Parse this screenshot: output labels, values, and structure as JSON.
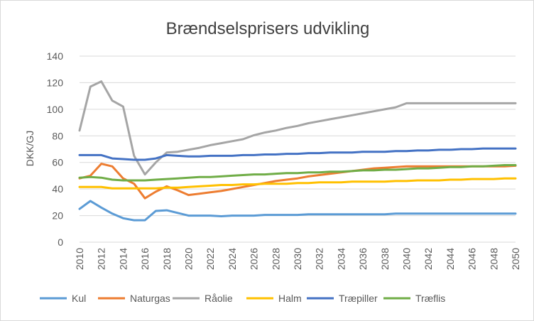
{
  "chart_data": {
    "type": "line",
    "title": "Brændselsprisers udvikling",
    "xlabel": "",
    "ylabel": "DKK/GJ",
    "ylim": [
      0,
      140
    ],
    "yticks": [
      0,
      20,
      40,
      60,
      80,
      100,
      120,
      140
    ],
    "x": [
      2010,
      2011,
      2012,
      2013,
      2014,
      2015,
      2016,
      2017,
      2018,
      2019,
      2020,
      2021,
      2022,
      2023,
      2024,
      2025,
      2026,
      2027,
      2028,
      2029,
      2030,
      2031,
      2032,
      2033,
      2034,
      2035,
      2036,
      2037,
      2038,
      2039,
      2040,
      2041,
      2042,
      2043,
      2044,
      2045,
      2046,
      2047,
      2048,
      2049,
      2050
    ],
    "xtick_labels": [
      "2010",
      "2012",
      "2014",
      "2016",
      "2018",
      "2020",
      "2022",
      "2024",
      "2026",
      "2028",
      "2030",
      "2032",
      "2034",
      "2036",
      "2038",
      "2040",
      "2042",
      "2044",
      "2046",
      "2048",
      "2050"
    ],
    "grid": true,
    "legend": "bottom",
    "series": [
      {
        "name": "Kul",
        "color": "#5b9bd5",
        "values": [
          25,
          31,
          26,
          21.5,
          18,
          16.5,
          16.5,
          23.5,
          24,
          22,
          20,
          20,
          20,
          19.5,
          20,
          20,
          20,
          20.5,
          20.5,
          20.5,
          20.5,
          21,
          21,
          21,
          21,
          21,
          21,
          21,
          21,
          21.5,
          21.5,
          21.5,
          21.5,
          21.5,
          21.5,
          21.5,
          21.5,
          21.5,
          21.5,
          21.5,
          21.5
        ]
      },
      {
        "name": "Naturgas",
        "color": "#ed7d31",
        "values": [
          48,
          50,
          59,
          57,
          48,
          44,
          33,
          38,
          42,
          39,
          35.5,
          36.5,
          37.5,
          38.5,
          40,
          41.5,
          43,
          44.5,
          46,
          47,
          48,
          49.5,
          50.5,
          51.5,
          52.5,
          53.5,
          54.5,
          55.5,
          56,
          56.5,
          57,
          57,
          57,
          57,
          57,
          57,
          57,
          57,
          57,
          57,
          57.5
        ]
      },
      {
        "name": "Råolie",
        "color": "#a5a5a5",
        "values": [
          84,
          117,
          121,
          106.5,
          102,
          65,
          51,
          60,
          67.5,
          68,
          69.5,
          71,
          73,
          74.5,
          76,
          77.5,
          80.5,
          82.5,
          84,
          86,
          87.5,
          89.5,
          91,
          92.5,
          94,
          95.5,
          97,
          98.5,
          100,
          101.5,
          104.5,
          104.5,
          104.5,
          104.5,
          104.5,
          104.5,
          104.5,
          104.5,
          104.5,
          104.5,
          104.5
        ]
      },
      {
        "name": "Halm",
        "color": "#ffc000",
        "values": [
          41.5,
          41.5,
          41.5,
          40.5,
          40.5,
          40.5,
          40.5,
          40.5,
          41,
          41,
          41.5,
          42,
          42.5,
          43,
          43,
          43.5,
          43.5,
          44,
          44,
          44,
          44.5,
          44.5,
          45,
          45,
          45,
          45.5,
          45.5,
          45.5,
          45.5,
          46,
          46,
          46.5,
          46.5,
          46.5,
          47,
          47,
          47.5,
          47.5,
          47.5,
          48,
          48
        ]
      },
      {
        "name": "Træpiller",
        "color": "#4472c4",
        "values": [
          65.5,
          65.5,
          65.5,
          63,
          62.5,
          62,
          62,
          63,
          65.5,
          65,
          64.5,
          64.5,
          65,
          65,
          65,
          65.5,
          65.5,
          66,
          66,
          66.5,
          66.5,
          67,
          67,
          67.5,
          67.5,
          67.5,
          68,
          68,
          68,
          68.5,
          68.5,
          69,
          69,
          69.5,
          69.5,
          70,
          70,
          70.5,
          70.5,
          70.5,
          70.5
        ]
      },
      {
        "name": "Træflis",
        "color": "#70ad47",
        "values": [
          48.5,
          49,
          48.5,
          47,
          46.5,
          46.5,
          46.5,
          47,
          47.5,
          48,
          48.5,
          49,
          49,
          49.5,
          50,
          50.5,
          51,
          51,
          51.5,
          52,
          52,
          52.5,
          52.5,
          53,
          53,
          53.5,
          54,
          54,
          54.5,
          54.5,
          55,
          55.5,
          55.5,
          56,
          56.5,
          56.5,
          57,
          57,
          57.5,
          58,
          58
        ]
      }
    ]
  }
}
